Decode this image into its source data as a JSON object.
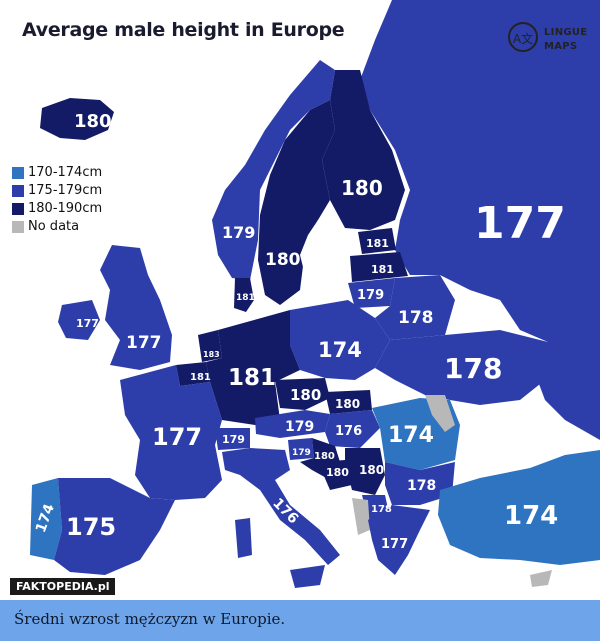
{
  "title": "Average male height in Europe",
  "brand": {
    "mark": "A文",
    "line1": "LINGUE",
    "line2": "MAPS"
  },
  "colors": {
    "ocean": "#ffffff",
    "band_170_174": "#2e74c0",
    "band_175_179": "#2d3eaa",
    "band_180_190": "#131a66",
    "no_data": "#b8b8b8",
    "caption_bg": "#6ea4ea"
  },
  "legend": [
    {
      "label": "170-174cm",
      "color": "#2e74c0"
    },
    {
      "label": "175-179cm",
      "color": "#2d3eaa"
    },
    {
      "label": "180-190cm",
      "color": "#131a66"
    },
    {
      "label": "No data",
      "color": "#b8b8b8"
    }
  ],
  "regions": [
    {
      "name": "iceland",
      "value": "180"
    },
    {
      "name": "russia",
      "value": "177"
    },
    {
      "name": "finland",
      "value": "180"
    },
    {
      "name": "norway",
      "value": "179"
    },
    {
      "name": "sweden",
      "value": "180"
    },
    {
      "name": "estonia",
      "value": "181"
    },
    {
      "name": "latvia",
      "value": "181"
    },
    {
      "name": "lithuania",
      "value": "179"
    },
    {
      "name": "denmark",
      "value": "181"
    },
    {
      "name": "ireland",
      "value": "177"
    },
    {
      "name": "uk",
      "value": "177"
    },
    {
      "name": "belarus",
      "value": "178"
    },
    {
      "name": "poland",
      "value": "174"
    },
    {
      "name": "ukraine",
      "value": "178"
    },
    {
      "name": "netherlands",
      "value": "183"
    },
    {
      "name": "belgium",
      "value": "181"
    },
    {
      "name": "germany",
      "value": "181"
    },
    {
      "name": "czechia",
      "value": "180"
    },
    {
      "name": "slovakia",
      "value": "180"
    },
    {
      "name": "france",
      "value": "177"
    },
    {
      "name": "switzerland",
      "value": "179"
    },
    {
      "name": "austria",
      "value": "179"
    },
    {
      "name": "hungary",
      "value": "176"
    },
    {
      "name": "romania",
      "value": "174"
    },
    {
      "name": "slovenia",
      "value": "179"
    },
    {
      "name": "croatia",
      "value": "180"
    },
    {
      "name": "bosnia",
      "value": "180"
    },
    {
      "name": "serbia",
      "value": "180"
    },
    {
      "name": "montenegro",
      "value": "178"
    },
    {
      "name": "bulgaria",
      "value": "178"
    },
    {
      "name": "italy",
      "value": "176"
    },
    {
      "name": "portugal",
      "value": "174"
    },
    {
      "name": "spain",
      "value": "175"
    },
    {
      "name": "greece",
      "value": "177"
    },
    {
      "name": "turkey",
      "value": "174"
    }
  ],
  "watermark": "FAKTOPEDIA.pl",
  "caption": "Średni wzrost mężczyzn w Europie."
}
